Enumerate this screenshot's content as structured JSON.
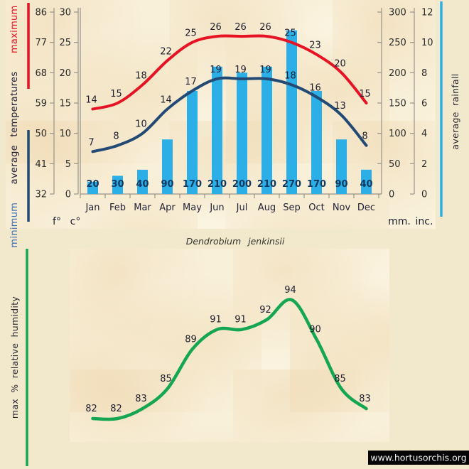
{
  "page": {
    "species_title": "Dendrobium jenkinsii",
    "watermark": "www.hortusorchis.org",
    "background_color": "#f2e9cd",
    "panel_color": "#f9f0d9"
  },
  "top_chart": {
    "left_label_parts": {
      "minimum": "minimum",
      "middle": "average temperatures",
      "maximum": "maximum"
    },
    "right_label": "average rainfall",
    "units": {
      "fahrenheit": "f°",
      "celsius": "c°",
      "millimeters": "mm.",
      "inches": "inc."
    },
    "colors": {
      "max_temp": "#e51323",
      "min_temp": "#234a74",
      "rainfall": "#2bafe6",
      "minimum_text": "#3c6cb4"
    }
  },
  "bottom_chart": {
    "left_label": "max % relative humidity",
    "color": "#14a650"
  },
  "chart_data": [
    {
      "type": "bar",
      "title": "Dendrobium jenkinsii",
      "subtitle": "monthly climate: average min/max temperature and rainfall",
      "categories": [
        "Jan",
        "Feb",
        "Mar",
        "Apr",
        "May",
        "Jun",
        "Jul",
        "Aug",
        "Sep",
        "Oct",
        "Nov",
        "Dec"
      ],
      "series": [
        {
          "name": "average maximum temperature",
          "kind": "line",
          "unit": "°C",
          "color": "#e51323",
          "values": [
            14,
            15,
            18,
            22,
            25,
            26,
            26,
            26,
            25,
            23,
            20,
            15
          ]
        },
        {
          "name": "average minimum temperature",
          "kind": "line",
          "unit": "°C",
          "color": "#234a74",
          "values": [
            7,
            8,
            10,
            14,
            17,
            19,
            19,
            19,
            18,
            16,
            13,
            8
          ]
        },
        {
          "name": "average rainfall",
          "kind": "bar",
          "unit": "mm",
          "color": "#2bafe6",
          "values": [
            20,
            30,
            40,
            90,
            170,
            210,
            200,
            210,
            270,
            170,
            90,
            40
          ]
        }
      ],
      "axes": {
        "celsius": {
          "label": "c°",
          "ticks": [
            30,
            25,
            20,
            15,
            10,
            5,
            0
          ],
          "range": [
            0,
            30
          ]
        },
        "fahrenheit": {
          "label": "f°",
          "ticks": [
            86,
            77,
            68,
            59,
            50,
            41,
            32
          ]
        },
        "millimeters": {
          "label": "mm.",
          "ticks": [
            300,
            250,
            200,
            150,
            100,
            50,
            0
          ],
          "range": [
            0,
            300
          ]
        },
        "inches": {
          "label": "inc.",
          "ticks": [
            12,
            10,
            8,
            6,
            4,
            2,
            0
          ]
        }
      },
      "legend_left": "minimum average temperatures maximum",
      "legend_right": "average rainfall",
      "grid": false,
      "legend_position": "left-and-right-rotated"
    },
    {
      "type": "line",
      "title": "max % relative humidity",
      "categories": [
        "Jan",
        "Feb",
        "Mar",
        "Apr",
        "May",
        "Jun",
        "Jul",
        "Aug",
        "Sep",
        "Oct",
        "Nov",
        "Dec"
      ],
      "series": [
        {
          "name": "max % relative humidity",
          "kind": "line",
          "unit": "%",
          "color": "#14a650",
          "values": [
            82,
            82,
            83,
            85,
            89,
            91,
            91,
            92,
            94,
            90,
            85,
            83
          ]
        }
      ],
      "ylim": [
        80,
        96
      ],
      "grid": false,
      "axes_hidden": true
    }
  ]
}
